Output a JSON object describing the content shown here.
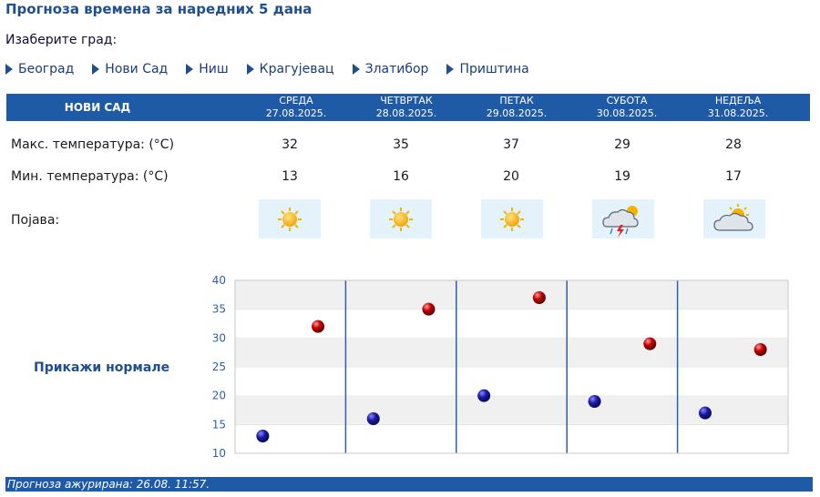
{
  "header": {
    "title": "Прогноза времена за наредних 5 дана",
    "select_label": "Изаберите град:"
  },
  "cities": [
    "Београд",
    "Нови Сад",
    "Ниш",
    "Крагујевац",
    "Златибор",
    "Приштина"
  ],
  "table": {
    "city": "НОВИ САД",
    "days": [
      {
        "name": "СРЕДА",
        "date": "27.08.2025.",
        "max": "32",
        "min": "13",
        "icon": "sun-icon"
      },
      {
        "name": "ЧЕТВРТАК",
        "date": "28.08.2025.",
        "max": "35",
        "min": "16",
        "icon": "sun-icon"
      },
      {
        "name": "ПЕТАК",
        "date": "29.08.2025.",
        "max": "37",
        "min": "20",
        "icon": "sun-icon"
      },
      {
        "name": "СУБОТА",
        "date": "30.08.2025.",
        "max": "29",
        "min": "19",
        "icon": "thunderstorm-icon"
      },
      {
        "name": "НЕДЕЉА",
        "date": "31.08.2025.",
        "max": "28",
        "min": "17",
        "icon": "partly-cloudy-icon"
      }
    ],
    "max_label": "Макс. температура: (°C)",
    "min_label": "Мин. температура: (°C)",
    "phenomenon_label": "Појава:"
  },
  "normals_link": "Прикажи нормале",
  "chart_data": {
    "type": "scatter",
    "categories": [
      "27.08.2025.",
      "28.08.2025.",
      "29.08.2025.",
      "30.08.2025.",
      "31.08.2025."
    ],
    "series": [
      {
        "values": [
          13,
          16,
          20,
          19,
          17
        ],
        "color": "#1a1aa8"
      },
      {
        "values": [
          32,
          35,
          37,
          29,
          28
        ],
        "color": "#c00000"
      }
    ],
    "ylim": [
      10,
      40
    ],
    "yticks": [
      10,
      15,
      20,
      25,
      30,
      35,
      40
    ],
    "grid": true
  },
  "footer": {
    "updated": "Прогноза ажурирана:  26.08. 11:57."
  },
  "colors": {
    "header_bg": "#1f5aa6",
    "title": "#1f4f8f",
    "min_point": "#1a1aa8",
    "max_point": "#c00000",
    "icon_bg": "#e3f2fb"
  }
}
